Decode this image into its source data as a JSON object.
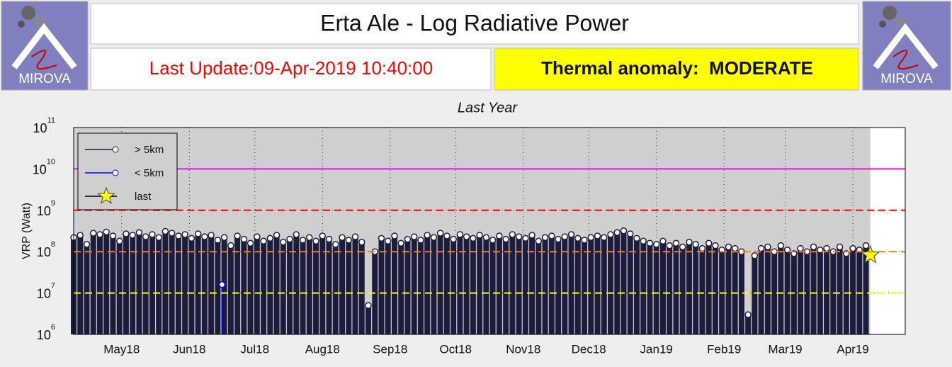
{
  "header": {
    "title": "Erta Ale - Log Radiative Power",
    "last_update": "Last Update:09-Apr-2019 10:40:00",
    "status": "Thermal anomaly:  MODERATE",
    "logo_text": "MIROVA"
  },
  "chart_data": {
    "type": "stem",
    "title": "Last Year",
    "ylabel": "VRP (Watt)",
    "log_scale": true,
    "grid": true,
    "xlim": [
      0,
      381
    ],
    "xticks": [
      {
        "value": 22,
        "label": "May18"
      },
      {
        "value": 53,
        "label": "Jun18"
      },
      {
        "value": 83,
        "label": "Jul18"
      },
      {
        "value": 114,
        "label": "Aug18"
      },
      {
        "value": 145,
        "label": "Sep18"
      },
      {
        "value": 175,
        "label": "Oct18"
      },
      {
        "value": 206,
        "label": "Nov18"
      },
      {
        "value": 236,
        "label": "Dec18"
      },
      {
        "value": 267,
        "label": "Jan19"
      },
      {
        "value": 298,
        "label": "Feb19"
      },
      {
        "value": 326,
        "label": "Mar19"
      },
      {
        "value": 357,
        "label": "Apr19"
      }
    ],
    "ylim": [
      1000000,
      100000000000
    ],
    "yticks": [
      {
        "value": 1000000,
        "label": "10",
        "power": "6"
      },
      {
        "value": 10000000,
        "label": "10",
        "power": "7"
      },
      {
        "value": 100000000,
        "label": "10",
        "power": "8"
      },
      {
        "value": 1000000000,
        "label": "10",
        "power": "9"
      },
      {
        "value": 10000000000,
        "label": "10",
        "power": "10"
      },
      {
        "value": 100000000000,
        "label": "10",
        "power": "11"
      }
    ],
    "reference_lines": [
      {
        "value": 10000000000,
        "color": "#ff00ff",
        "dash": false
      },
      {
        "value": 1000000000,
        "color": "#ff0000",
        "dash": true
      },
      {
        "value": 100000000,
        "color": "#ff7f00",
        "dash": true
      },
      {
        "value": 10000000,
        "color": "#ffff00",
        "dash": true
      }
    ],
    "legend": "upper left",
    "series": [
      {
        "name": "> 5km",
        "color": "#1c1c3c",
        "marker": "circle",
        "x": [
          0,
          3,
          6,
          9,
          12,
          15,
          18,
          21,
          24,
          27,
          30,
          33,
          36,
          39,
          42,
          45,
          48,
          51,
          54,
          57,
          60,
          63,
          66,
          69,
          72,
          75,
          78,
          81,
          84,
          87,
          90,
          93,
          96,
          99,
          102,
          105,
          108,
          111,
          114,
          117,
          120,
          123,
          126,
          129,
          132,
          135,
          138,
          141,
          144,
          147,
          150,
          153,
          156,
          159,
          162,
          165,
          168,
          171,
          174,
          177,
          180,
          183,
          186,
          189,
          192,
          195,
          198,
          201,
          204,
          207,
          210,
          213,
          216,
          219,
          222,
          225,
          228,
          231,
          234,
          237,
          240,
          243,
          246,
          249,
          252,
          255,
          258,
          261,
          264,
          267,
          270,
          273,
          276,
          279,
          282,
          285,
          288,
          291,
          294,
          297,
          300,
          303,
          306,
          309,
          312,
          315,
          318,
          321,
          324,
          327,
          330,
          333,
          336,
          339,
          342,
          345,
          348,
          351,
          354,
          357,
          360,
          363
        ],
        "values": [
          220000000.0,
          250000000.0,
          150000000.0,
          280000000.0,
          260000000.0,
          300000000.0,
          240000000.0,
          180000000.0,
          270000000.0,
          250000000.0,
          290000000.0,
          230000000.0,
          260000000.0,
          220000000.0,
          310000000.0,
          280000000.0,
          240000000.0,
          260000000.0,
          210000000.0,
          270000000.0,
          230000000.0,
          250000000.0,
          190000000.0,
          220000000.0,
          140000000.0,
          240000000.0,
          200000000.0,
          160000000.0,
          230000000.0,
          180000000.0,
          210000000.0,
          250000000.0,
          170000000.0,
          200000000.0,
          260000000.0,
          190000000.0,
          220000000.0,
          180000000.0,
          240000000.0,
          200000000.0,
          150000000.0,
          220000000.0,
          190000000.0,
          230000000.0,
          170000000.0,
          5000000.0,
          100000000.0,
          210000000.0,
          180000000.0,
          240000000.0,
          160000000.0,
          200000000.0,
          230000000.0,
          190000000.0,
          250000000.0,
          220000000.0,
          280000000.0,
          240000000.0,
          200000000.0,
          260000000.0,
          230000000.0,
          210000000.0,
          250000000.0,
          220000000.0,
          190000000.0,
          240000000.0,
          200000000.0,
          260000000.0,
          230000000.0,
          210000000.0,
          250000000.0,
          180000000.0,
          220000000.0,
          240000000.0,
          200000000.0,
          230000000.0,
          260000000.0,
          210000000.0,
          190000000.0,
          220000000.0,
          240000000.0,
          220000000.0,
          260000000.0,
          290000000.0,
          320000000.0,
          270000000.0,
          210000000.0,
          180000000.0,
          160000000.0,
          150000000.0,
          180000000.0,
          140000000.0,
          160000000.0,
          130000000.0,
          170000000.0,
          150000000.0,
          120000000.0,
          160000000.0,
          140000000.0,
          110000000.0,
          130000000.0,
          120000000.0,
          100000000.0,
          3000000.0,
          80000000.0,
          120000000.0,
          130000000.0,
          100000000.0,
          140000000.0,
          110000000.0,
          90000000.0,
          120000000.0,
          100000000.0,
          130000000.0,
          110000000.0,
          120000000.0,
          100000000.0,
          130000000.0,
          90000000.0,
          120000000.0,
          110000000.0,
          140000000.0
        ]
      },
      {
        "name": "< 5km",
        "color": "#0000ff",
        "marker": "circle",
        "x": [
          68
        ],
        "values": [
          16000000.0
        ]
      },
      {
        "name": "last",
        "color": "#ffff00",
        "marker": "star",
        "x": [
          365
        ],
        "values": [
          83000000.0
        ]
      }
    ]
  }
}
